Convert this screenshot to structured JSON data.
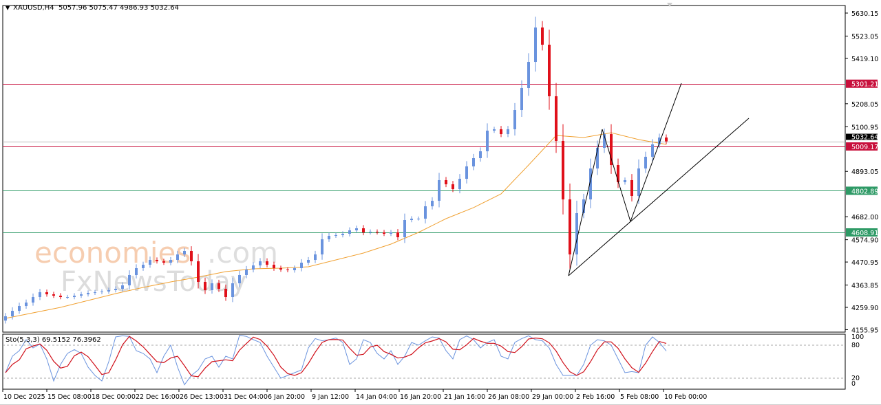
{
  "header": {
    "symbol": "XAUUSD,H4",
    "ohlc": "5057.96 5075.47 4986.93 5032.64"
  },
  "watermark": {
    "line1": "economies.com",
    "line2": "FxNewsToday"
  },
  "colors": {
    "bull": "#6a93de",
    "bear": "#e0101a",
    "ma": "#f0a030",
    "resistance": "#c8103c",
    "support": "#2e9a66",
    "current": "#000000",
    "stoch_main": "#6a93de",
    "stoch_signal": "#d0101a",
    "trendline": "#000000"
  },
  "chart_data": [
    {
      "type": "candlestick",
      "title": "XAUUSD,H4",
      "ylim": [
        4155.95,
        5630.15
      ],
      "y_ticks": [
        "5630.15",
        "5523.05",
        "5419.10",
        "5208.05",
        "5100.95",
        "4893.05",
        "4682.00",
        "4574.90",
        "4470.95",
        "4363.85",
        "4259.90",
        "4155.95"
      ],
      "x_ticks": [
        "10 Dec 2025",
        "15 Dec 08:00",
        "18 Dec 00:00",
        "22 Dec 16:00",
        "26 Dec 13:00",
        "31 Dec 04:00",
        "6 Jan 20:00",
        "9 Jan 12:00",
        "14 Jan 04:00",
        "16 Jan 20:00",
        "21 Jan 16:00",
        "26 Jan 08:00",
        "29 Jan 00:00",
        "2 Feb 16:00",
        "5 Feb 08:00",
        "10 Feb 00:00"
      ],
      "close": [
        4218.3,
        4243.9,
        4266.3,
        4282.3,
        4307.9,
        4330.4,
        4320.7,
        4314.3,
        4307.9,
        4307.9,
        4314.3,
        4320.7,
        4327.1,
        4330.4,
        4333.6,
        4340.0,
        4346.4,
        4362.4,
        4410.4,
        4442.4,
        4458.4,
        4480.8,
        4474.4,
        4468.0,
        4480.8,
        4506.4,
        4522.4,
        4474.4,
        4378.4,
        4340.0,
        4372.0,
        4346.4,
        4307.9,
        4372.0,
        4410.4,
        4436.0,
        4455.2,
        4474.4,
        4458.4,
        4442.4,
        4436.0,
        4432.8,
        4442.4,
        4468.0,
        4480.8,
        4506.4,
        4576.9,
        4592.9,
        4596.1,
        4602.5,
        4618.5,
        4628.1,
        4608.9,
        4612.1,
        4608.9,
        4602.5,
        4608.9,
        4586.5,
        4666.5,
        4672.9,
        4672.9,
        4730.5,
        4756.2,
        4852.2,
        4833.0,
        4810.6,
        4858.6,
        4916.2,
        4954.6,
        4986.6,
        5082.7,
        5089.1,
        5066.6,
        5089.1,
        5178.7,
        5281.2,
        5402.8,
        5562.9,
        5482.9,
        5242.8,
        5034.7,
        4762.6,
        4506.4,
        4698.5,
        4762.6,
        4906.6,
        5002.6,
        5066.6,
        4922.6,
        4842.6,
        4852.2,
        4778.6,
        4906.6,
        4961.0,
        5018.7,
        5050.7,
        5032.64
      ],
      "moving_average": [
        4208.7,
        4234.3,
        4259.9,
        4291.9,
        4323.9,
        4352.7,
        4378.4,
        4400.8,
        4426.4,
        4439.2,
        4442.4,
        4448.8,
        4480.8,
        4512.8,
        4554.5,
        4608.9,
        4672.9,
        4724.2,
        4788.2,
        4922.6,
        5060.3,
        5050.7,
        5073.1,
        5041.1,
        5018.7
      ],
      "horizontal_levels": [
        {
          "price": 5301.21,
          "label": "5301.21",
          "kind": "resistance"
        },
        {
          "price": 5009.17,
          "label": "5009.17",
          "kind": "resistance"
        },
        {
          "price": 4802.89,
          "label": "4802.89",
          "kind": "support"
        },
        {
          "price": 4608.91,
          "label": "4608.91",
          "kind": "support"
        }
      ],
      "current_price": {
        "price": 5032.64,
        "label": "5032.64"
      },
      "trendlines": [
        {
          "from": [
            81.8,
            4407.1
          ],
          "to": [
            86.7,
            5089.1
          ]
        },
        {
          "from": [
            86.7,
            5089.1
          ],
          "to": [
            90.8,
            4660.1
          ]
        },
        {
          "from": [
            90.8,
            4660.1
          ],
          "to": [
            98.2,
            5303.6
          ]
        },
        {
          "from": [
            81.8,
            4407.1
          ],
          "to": [
            108.0,
            5140.3
          ]
        }
      ]
    },
    {
      "type": "line",
      "title": "Sto(5,3,3) 69.5152 76.3962",
      "ylim": [
        0,
        100
      ],
      "y_ticks": [
        "100",
        "80",
        "20",
        "0"
      ],
      "levels": [
        80,
        20
      ],
      "main": [
        30,
        60,
        70,
        90,
        75,
        82,
        55,
        15,
        45,
        65,
        72,
        65,
        40,
        25,
        15,
        50,
        95,
        97,
        96,
        70,
        65,
        55,
        30,
        60,
        80,
        40,
        8,
        25,
        35,
        55,
        60,
        40,
        60,
        55,
        98,
        96,
        90,
        85,
        60,
        40,
        20,
        25,
        30,
        35,
        75,
        92,
        88,
        90,
        93,
        85,
        45,
        55,
        90,
        85,
        65,
        55,
        70,
        45,
        60,
        85,
        80,
        88,
        95,
        93,
        70,
        55,
        90,
        97,
        90,
        75,
        85,
        90,
        60,
        55,
        85,
        92,
        97,
        90,
        88,
        75,
        45,
        25,
        25,
        25,
        45,
        80,
        90,
        88,
        80,
        55,
        30,
        32,
        30,
        80,
        95,
        85,
        69.5152
      ]
    }
  ]
}
